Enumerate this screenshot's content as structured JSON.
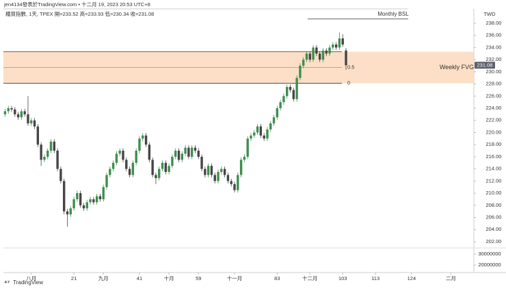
{
  "header": {
    "author_line": "jen4134發表於TradingView.com • 十二月 19, 2023 20:53 UTC+8",
    "symbol": "櫃買指數, 1天, TPEX",
    "ohlc_labels": [
      "開=",
      "高=",
      "低=",
      "收="
    ]
  },
  "footer": "TradingView",
  "chart_data": {
    "type": "candlestick",
    "currency": "TWD",
    "up_color": "#3e8e4f",
    "down_color": "#454545",
    "candles": [
      [
        223,
        223.9,
        222.6,
        223.5
      ],
      [
        223.5,
        224.4,
        223.1,
        224
      ],
      [
        224,
        224.4,
        223.4,
        223.8
      ],
      [
        223.8,
        224.2,
        222.6,
        223
      ],
      [
        223,
        223.4,
        222.1,
        222.5
      ],
      [
        222.5,
        223.9,
        222.1,
        223.5
      ],
      [
        223.5,
        223.9,
        222.6,
        223
      ],
      [
        223,
        226,
        221.1,
        221.5
      ],
      [
        221.5,
        222.4,
        221.1,
        222
      ],
      [
        222,
        222.4,
        220.6,
        221
      ],
      [
        221,
        221.4,
        217.6,
        218
      ],
      [
        218,
        218.4,
        214.5,
        215.5
      ],
      [
        215.5,
        216.4,
        215.1,
        216
      ],
      [
        216,
        217.4,
        215.6,
        217
      ],
      [
        217,
        218.9,
        216.6,
        218.5
      ],
      [
        218.5,
        218.9,
        216.6,
        217
      ],
      [
        217,
        217.4,
        213.6,
        214
      ],
      [
        214,
        214.4,
        211.6,
        212
      ],
      [
        212,
        212.4,
        206.5,
        207
      ],
      [
        207,
        207.4,
        204.5,
        206.5
      ],
      [
        206.5,
        207.9,
        206.1,
        207.5
      ],
      [
        207.5,
        209.4,
        207.1,
        209
      ],
      [
        209,
        210.4,
        208.6,
        210
      ],
      [
        210,
        210.4,
        207.6,
        208
      ],
      [
        208,
        208.4,
        207.1,
        207.5
      ],
      [
        207.5,
        208.9,
        207.1,
        208.5
      ],
      [
        208.5,
        209.4,
        208.1,
        209
      ],
      [
        209,
        209.4,
        208.1,
        208.5
      ],
      [
        208.5,
        209.9,
        208.1,
        209.5
      ],
      [
        209.5,
        209.9,
        208.6,
        209
      ],
      [
        209,
        211.4,
        208.6,
        211
      ],
      [
        211,
        213.4,
        210.6,
        213
      ],
      [
        213,
        214.4,
        212.6,
        214
      ],
      [
        214,
        215.4,
        213.6,
        215
      ],
      [
        215,
        216.9,
        214.6,
        216.5
      ],
      [
        216.5,
        217.4,
        216.1,
        217
      ],
      [
        217,
        217.4,
        215.1,
        215.5
      ],
      [
        215.5,
        215.9,
        213.6,
        214
      ],
      [
        214,
        214.4,
        212.6,
        213
      ],
      [
        213,
        215.4,
        212.6,
        215
      ],
      [
        215,
        217.4,
        214.6,
        217
      ],
      [
        217,
        219.4,
        216.6,
        219
      ],
      [
        219,
        219.9,
        218.6,
        219.5
      ],
      [
        219.5,
        219.9,
        217.6,
        218
      ],
      [
        218,
        218.4,
        215.1,
        215.5
      ],
      [
        215.5,
        215.9,
        212.6,
        213
      ],
      [
        213,
        213.4,
        211.5,
        212.5
      ],
      [
        212.5,
        214.4,
        212.1,
        214
      ],
      [
        214,
        215.4,
        213.6,
        215
      ],
      [
        215,
        215.4,
        213.1,
        213.5
      ],
      [
        213.5,
        214.9,
        213.1,
        214.5
      ],
      [
        214.5,
        216.4,
        214.1,
        216
      ],
      [
        216,
        217.4,
        215.6,
        217
      ],
      [
        217,
        217.4,
        215.1,
        215.5
      ],
      [
        215.5,
        216.9,
        215.1,
        216.5
      ],
      [
        216.5,
        217.9,
        216.1,
        217.5
      ],
      [
        217.5,
        217.9,
        215.6,
        216
      ],
      [
        216,
        217.9,
        215.6,
        217.5
      ],
      [
        217.5,
        217.9,
        216.6,
        217
      ],
      [
        217,
        217.4,
        215.6,
        216
      ],
      [
        216,
        216.4,
        213.6,
        214
      ],
      [
        214,
        214.4,
        212.6,
        213
      ],
      [
        213,
        214.9,
        212.6,
        214.5
      ],
      [
        214.5,
        214.9,
        212.6,
        213
      ],
      [
        213,
        213.4,
        211.6,
        212
      ],
      [
        212,
        213.9,
        211.6,
        213.5
      ],
      [
        213.5,
        214.4,
        213.1,
        214
      ],
      [
        214,
        214.4,
        212.6,
        213
      ],
      [
        213,
        213.4,
        211.6,
        212
      ],
      [
        212,
        212.4,
        211.1,
        211.5
      ],
      [
        211.5,
        211.9,
        210.1,
        210.5
      ],
      [
        210.5,
        213.4,
        210.1,
        213
      ],
      [
        213,
        215.9,
        212.6,
        215.5
      ],
      [
        215.5,
        216.4,
        215.1,
        216
      ],
      [
        216,
        219.4,
        215.6,
        219
      ],
      [
        219,
        219.9,
        218.6,
        219.5
      ],
      [
        219.5,
        220.4,
        219.1,
        220
      ],
      [
        220,
        221.4,
        219.6,
        221
      ],
      [
        221,
        221.4,
        219.1,
        219.5
      ],
      [
        219.5,
        219.9,
        218.6,
        219
      ],
      [
        219,
        220.9,
        218.6,
        220.5
      ],
      [
        220.5,
        221.9,
        220.1,
        221.5
      ],
      [
        221.5,
        222.9,
        221.1,
        222.5
      ],
      [
        222.5,
        224.4,
        222.1,
        224
      ],
      [
        224,
        225.4,
        223.6,
        225
      ],
      [
        225,
        226.4,
        224.6,
        226
      ],
      [
        226,
        227.9,
        225.6,
        227.5
      ],
      [
        227.5,
        227.9,
        226.6,
        227
      ],
      [
        227,
        227.4,
        225.1,
        225.5
      ],
      [
        225.5,
        229.4,
        225.1,
        229
      ],
      [
        229,
        231.4,
        228.6,
        231
      ],
      [
        231,
        232.4,
        230.6,
        232
      ],
      [
        232,
        233.4,
        231.6,
        233
      ],
      [
        233,
        233.4,
        231.6,
        232
      ],
      [
        232,
        234.4,
        231.6,
        234
      ],
      [
        234,
        234.4,
        232.6,
        233
      ],
      [
        233,
        233.4,
        231.6,
        232
      ],
      [
        232,
        233.9,
        231.6,
        233.5
      ],
      [
        233.5,
        233.9,
        232.6,
        233
      ],
      [
        233,
        234.4,
        232.6,
        234
      ],
      [
        234,
        234.9,
        233.6,
        234.5
      ],
      [
        234.5,
        234.9,
        233.6,
        234
      ],
      [
        234,
        236.5,
        233.6,
        235.5
      ],
      [
        235.5,
        236.2,
        234.1,
        234.5
      ],
      [
        233.52,
        233.93,
        230.34,
        231.08
      ]
    ],
    "xlim": [
      -0.5,
      143
    ],
    "xticks": [
      {
        "value": 8,
        "label": "八月"
      },
      21,
      {
        "value": 30,
        "label": "九月"
      },
      41,
      {
        "value": 50,
        "label": "十月"
      },
      59,
      {
        "value": 70,
        "label": "十一月"
      },
      83,
      {
        "value": 93,
        "label": "十二月"
      },
      103,
      113,
      124,
      {
        "value": 136,
        "label": "二月"
      }
    ],
    "ylim": [
      200.98,
      240.14
    ],
    "yticks": [
      {
        "value": 202,
        "label": "202.00"
      },
      {
        "value": 204,
        "label": "204.00"
      },
      {
        "value": 206,
        "label": "206.00"
      },
      {
        "value": 208,
        "label": "208.00"
      },
      {
        "value": 210,
        "label": "210.00"
      },
      {
        "value": 212,
        "label": "212.00"
      },
      {
        "value": 214,
        "label": "214.00"
      },
      {
        "value": 216,
        "label": "216.00"
      },
      {
        "value": 218,
        "label": "218.00"
      },
      {
        "value": 220,
        "label": "220.00"
      },
      {
        "value": 222,
        "label": "222.00"
      },
      {
        "value": 224,
        "label": "224.00"
      },
      {
        "value": 226,
        "label": "226.00"
      },
      {
        "value": 228,
        "label": "228.00"
      },
      {
        "value": 230,
        "label": "230.00"
      },
      {
        "value": 232,
        "label": "232.00"
      },
      {
        "value": 234,
        "label": "234.00"
      },
      {
        "value": 236,
        "label": "236.00"
      },
      {
        "value": 238,
        "label": "238.00"
      }
    ],
    "y2lim": [
      13125000,
      35625000
    ],
    "y2ticks": [
      20000000,
      30000000
    ],
    "fvg": {
      "top": 233.3,
      "bottom": 228.1,
      "label": "Weekly FVG",
      "color": "#fbd9bc",
      "levels": [
        {
          "value": 230.7,
          "label": "0.5"
        },
        {
          "value": 228.1,
          "label": "0"
        }
      ]
    },
    "bsl": {
      "value": 238.7,
      "label": "Monthly BSL"
    }
  }
}
